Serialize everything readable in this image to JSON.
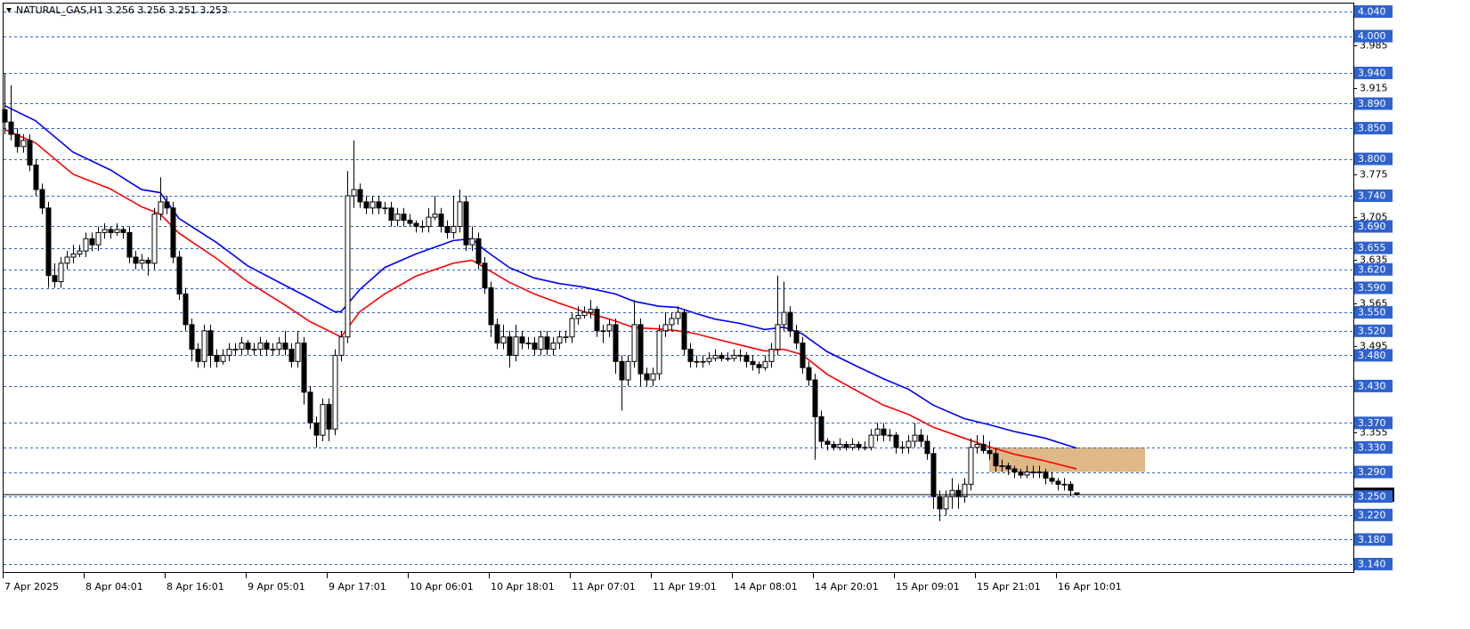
{
  "chart_data": {
    "type": "candlestick",
    "title": "NATURAL_GAS,H1",
    "ylim": [
      3.127,
      4.053
    ],
    "yticks": [
      3.985,
      3.915,
      3.775,
      3.705,
      3.635,
      3.565,
      3.495,
      3.355
    ],
    "levels": {
      "color": "#2f62d0",
      "values": [
        {
          "value": 4.04,
          "label": "4.040"
        },
        {
          "value": 4,
          "label": "4.000"
        },
        {
          "value": 3.94,
          "label": "3.940"
        },
        {
          "value": 3.89,
          "label": "3.890"
        },
        {
          "value": 3.85,
          "label": "3.850"
        },
        {
          "value": 3.8,
          "label": "3.800"
        },
        {
          "value": 3.74,
          "label": "3.740"
        },
        {
          "value": 3.69,
          "label": "3.690"
        },
        3.655,
        {
          "value": 3.62,
          "label": "3.620"
        },
        {
          "value": 3.59,
          "label": "3.590"
        },
        {
          "value": 3.55,
          "label": "3.550"
        },
        {
          "value": 3.52,
          "label": "3.520"
        },
        {
          "value": 3.48,
          "label": "3.480"
        },
        {
          "value": 3.43,
          "label": "3.430"
        },
        {
          "value": 3.37,
          "label": "3.370"
        },
        {
          "value": 3.33,
          "label": "3.330"
        },
        {
          "value": 3.29,
          "label": "3.290"
        },
        {
          "value": 3.25,
          "label": "3.250"
        },
        {
          "value": 3.22,
          "label": "3.220"
        },
        {
          "value": 3.18,
          "label": "3.180"
        },
        {
          "value": 3.14,
          "label": "3.140"
        }
      ]
    },
    "x_labels": [
      "7 Apr 2025",
      "8 Apr 04:01",
      "8 Apr 16:01",
      "9 Apr 05:01",
      "9 Apr 17:01",
      "10 Apr 06:01",
      "10 Apr 18:01",
      "11 Apr 07:01",
      "11 Apr 19:01",
      "14 Apr 08:01",
      "14 Apr 20:01",
      "15 Apr 09:01",
      "15 Apr 21:01",
      "16 Apr 10:01"
    ],
    "colors": {
      "up": "#ffffff",
      "down": "#000000",
      "outline": "#000000",
      "current": "#000000"
    },
    "zone": {
      "color": "#deb887",
      "ylim": [
        3.29,
        3.33
      ]
    },
    "series": [
      {
        "color": "#0000ff",
        "x": [
          0,
          5,
          11,
          17,
          22,
          25,
          28,
          34,
          39,
          45,
          49,
          53,
          54,
          57,
          61,
          66,
          72,
          75,
          77,
          81,
          85,
          89,
          93,
          98,
          101,
          105,
          108,
          111,
          114,
          118,
          122,
          125,
          128,
          132,
          137,
          141,
          145,
          149,
          154,
          158,
          162,
          167,
          172
        ],
        "values": [
          3.887,
          3.862,
          3.811,
          3.782,
          3.75,
          3.745,
          3.703,
          3.664,
          3.626,
          3.594,
          3.573,
          3.551,
          3.551,
          3.587,
          3.623,
          3.645,
          3.667,
          3.67,
          3.652,
          3.623,
          3.606,
          3.597,
          3.591,
          3.58,
          3.568,
          3.56,
          3.558,
          3.548,
          3.539,
          3.532,
          3.522,
          3.526,
          3.515,
          3.486,
          3.461,
          3.442,
          3.425,
          3.399,
          3.377,
          3.367,
          3.356,
          3.345,
          3.329
        ]
      },
      {
        "color": "#ff0000",
        "x": [
          0,
          5,
          11,
          17,
          22,
          25,
          28,
          34,
          39,
          45,
          49,
          53,
          54,
          57,
          61,
          66,
          72,
          75,
          77,
          81,
          85,
          89,
          93,
          98,
          101,
          105,
          108,
          111,
          114,
          118,
          122,
          125,
          128,
          132,
          137,
          141,
          145,
          149,
          154,
          158,
          162,
          167,
          172
        ],
        "values": [
          3.848,
          3.826,
          3.775,
          3.751,
          3.722,
          3.71,
          3.679,
          3.638,
          3.6,
          3.562,
          3.535,
          3.515,
          3.51,
          3.551,
          3.58,
          3.609,
          3.63,
          3.635,
          3.623,
          3.599,
          3.58,
          3.565,
          3.551,
          3.536,
          3.525,
          3.523,
          3.52,
          3.515,
          3.507,
          3.497,
          3.487,
          3.49,
          3.481,
          3.449,
          3.421,
          3.399,
          3.384,
          3.363,
          3.345,
          3.331,
          3.319,
          3.308,
          3.295
        ]
      }
    ],
    "candles": [
      [
        3.88,
        3.94,
        3.84,
        3.86
      ],
      [
        3.86,
        3.92,
        3.83,
        3.84
      ],
      [
        3.84,
        3.85,
        3.81,
        3.82
      ],
      [
        3.82,
        3.84,
        3.81,
        3.83
      ],
      [
        3.83,
        3.84,
        3.78,
        3.79
      ],
      [
        3.79,
        3.8,
        3.74,
        3.75
      ],
      [
        3.75,
        3.76,
        3.71,
        3.72
      ],
      [
        3.72,
        3.73,
        3.59,
        3.61
      ],
      [
        3.61,
        3.63,
        3.59,
        3.6
      ],
      [
        3.6,
        3.64,
        3.59,
        3.63
      ],
      [
        3.63,
        3.65,
        3.62,
        3.64
      ],
      [
        3.64,
        3.66,
        3.63,
        3.645
      ],
      [
        3.645,
        3.66,
        3.64,
        3.65
      ],
      [
        3.65,
        3.68,
        3.64,
        3.67
      ],
      [
        3.67,
        3.68,
        3.65,
        3.66
      ],
      [
        3.66,
        3.69,
        3.65,
        3.68
      ],
      [
        3.68,
        3.695,
        3.67,
        3.685
      ],
      [
        3.685,
        3.69,
        3.67,
        3.68
      ],
      [
        3.68,
        3.695,
        3.675,
        3.685
      ],
      [
        3.685,
        3.69,
        3.67,
        3.68
      ],
      [
        3.68,
        3.69,
        3.63,
        3.64
      ],
      [
        3.64,
        3.65,
        3.62,
        3.63
      ],
      [
        3.63,
        3.645,
        3.62,
        3.635
      ],
      [
        3.635,
        3.64,
        3.61,
        3.63
      ],
      [
        3.63,
        3.72,
        3.62,
        3.71
      ],
      [
        3.71,
        3.77,
        3.7,
        3.73
      ],
      [
        3.73,
        3.74,
        3.71,
        3.72
      ],
      [
        3.72,
        3.73,
        3.63,
        3.64
      ],
      [
        3.64,
        3.65,
        3.57,
        3.58
      ],
      [
        3.58,
        3.59,
        3.52,
        3.53
      ],
      [
        3.53,
        3.54,
        3.47,
        3.49
      ],
      [
        3.49,
        3.5,
        3.46,
        3.47
      ],
      [
        3.47,
        3.53,
        3.46,
        3.52
      ],
      [
        3.52,
        3.53,
        3.46,
        3.48
      ],
      [
        3.48,
        3.49,
        3.46,
        3.47
      ],
      [
        3.47,
        3.49,
        3.465,
        3.48
      ],
      [
        3.48,
        3.5,
        3.47,
        3.49
      ],
      [
        3.49,
        3.5,
        3.48,
        3.49
      ],
      [
        3.49,
        3.51,
        3.48,
        3.5
      ],
      [
        3.5,
        3.505,
        3.48,
        3.49
      ],
      [
        3.49,
        3.5,
        3.48,
        3.49
      ],
      [
        3.49,
        3.51,
        3.48,
        3.5
      ],
      [
        3.5,
        3.505,
        3.48,
        3.49
      ],
      [
        3.49,
        3.5,
        3.48,
        3.49
      ],
      [
        3.49,
        3.51,
        3.48,
        3.5
      ],
      [
        3.5,
        3.52,
        3.48,
        3.49
      ],
      [
        3.49,
        3.5,
        3.46,
        3.47
      ],
      [
        3.47,
        3.52,
        3.46,
        3.5
      ],
      [
        3.5,
        3.51,
        3.4,
        3.42
      ],
      [
        3.42,
        3.43,
        3.36,
        3.37
      ],
      [
        3.37,
        3.38,
        3.33,
        3.35
      ],
      [
        3.35,
        3.41,
        3.34,
        3.4
      ],
      [
        3.4,
        3.41,
        3.34,
        3.36
      ],
      [
        3.36,
        3.49,
        3.35,
        3.48
      ],
      [
        3.48,
        3.52,
        3.47,
        3.51
      ],
      [
        3.51,
        3.78,
        3.5,
        3.74
      ],
      [
        3.74,
        3.83,
        3.72,
        3.75
      ],
      [
        3.75,
        3.76,
        3.72,
        3.73
      ],
      [
        3.73,
        3.74,
        3.71,
        3.72
      ],
      [
        3.72,
        3.74,
        3.71,
        3.73
      ],
      [
        3.73,
        3.74,
        3.71,
        3.72
      ],
      [
        3.72,
        3.73,
        3.71,
        3.72
      ],
      [
        3.72,
        3.73,
        3.69,
        3.7
      ],
      [
        3.7,
        3.72,
        3.69,
        3.71
      ],
      [
        3.71,
        3.72,
        3.69,
        3.7
      ],
      [
        3.7,
        3.71,
        3.69,
        3.695
      ],
      [
        3.695,
        3.7,
        3.68,
        3.69
      ],
      [
        3.69,
        3.7,
        3.68,
        3.69
      ],
      [
        3.69,
        3.72,
        3.68,
        3.705
      ],
      [
        3.705,
        3.74,
        3.7,
        3.71
      ],
      [
        3.71,
        3.72,
        3.68,
        3.69
      ],
      [
        3.69,
        3.7,
        3.67,
        3.68
      ],
      [
        3.68,
        3.74,
        3.67,
        3.69
      ],
      [
        3.69,
        3.75,
        3.68,
        3.73
      ],
      [
        3.73,
        3.74,
        3.65,
        3.66
      ],
      [
        3.66,
        3.69,
        3.65,
        3.67
      ],
      [
        3.67,
        3.68,
        3.62,
        3.63
      ],
      [
        3.63,
        3.64,
        3.58,
        3.59
      ],
      [
        3.59,
        3.6,
        3.51,
        3.53
      ],
      [
        3.53,
        3.54,
        3.49,
        3.5
      ],
      [
        3.5,
        3.53,
        3.49,
        3.51
      ],
      [
        3.51,
        3.52,
        3.46,
        3.48
      ],
      [
        3.48,
        3.53,
        3.47,
        3.51
      ],
      [
        3.51,
        3.52,
        3.49,
        3.5
      ],
      [
        3.5,
        3.51,
        3.49,
        3.5
      ],
      [
        3.5,
        3.51,
        3.48,
        3.49
      ],
      [
        3.49,
        3.52,
        3.48,
        3.51
      ],
      [
        3.51,
        3.52,
        3.48,
        3.49
      ],
      [
        3.49,
        3.51,
        3.48,
        3.5
      ],
      [
        3.5,
        3.52,
        3.49,
        3.51
      ],
      [
        3.51,
        3.52,
        3.5,
        3.51
      ],
      [
        3.51,
        3.55,
        3.5,
        3.54
      ],
      [
        3.54,
        3.56,
        3.53,
        3.545
      ],
      [
        3.545,
        3.56,
        3.54,
        3.55
      ],
      [
        3.55,
        3.57,
        3.54,
        3.555
      ],
      [
        3.555,
        3.56,
        3.51,
        3.52
      ],
      [
        3.52,
        3.53,
        3.5,
        3.52
      ],
      [
        3.52,
        3.54,
        3.51,
        3.53
      ],
      [
        3.53,
        3.54,
        3.45,
        3.47
      ],
      [
        3.47,
        3.48,
        3.39,
        3.44
      ],
      [
        3.44,
        3.48,
        3.43,
        3.47
      ],
      [
        3.47,
        3.57,
        3.46,
        3.53
      ],
      [
        3.53,
        3.54,
        3.43,
        3.45
      ],
      [
        3.45,
        3.46,
        3.43,
        3.44
      ],
      [
        3.44,
        3.46,
        3.43,
        3.45
      ],
      [
        3.45,
        3.53,
        3.44,
        3.52
      ],
      [
        3.52,
        3.55,
        3.51,
        3.53
      ],
      [
        3.53,
        3.55,
        3.52,
        3.54
      ],
      [
        3.54,
        3.56,
        3.53,
        3.55
      ],
      [
        3.55,
        3.555,
        3.48,
        3.49
      ],
      [
        3.49,
        3.5,
        3.46,
        3.47
      ],
      [
        3.47,
        3.48,
        3.46,
        3.47
      ],
      [
        3.47,
        3.48,
        3.46,
        3.47
      ],
      [
        3.47,
        3.485,
        3.465,
        3.475
      ],
      [
        3.475,
        3.49,
        3.47,
        3.48
      ],
      [
        3.48,
        3.485,
        3.47,
        3.475
      ],
      [
        3.475,
        3.485,
        3.47,
        3.475
      ],
      [
        3.475,
        3.49,
        3.47,
        3.48
      ],
      [
        3.48,
        3.49,
        3.47,
        3.48
      ],
      [
        3.48,
        3.485,
        3.46,
        3.47
      ],
      [
        3.47,
        3.48,
        3.455,
        3.465
      ],
      [
        3.465,
        3.47,
        3.45,
        3.46
      ],
      [
        3.46,
        3.48,
        3.455,
        3.47
      ],
      [
        3.47,
        3.5,
        3.46,
        3.49
      ],
      [
        3.49,
        3.61,
        3.48,
        3.53
      ],
      [
        3.53,
        3.6,
        3.52,
        3.55
      ],
      [
        3.55,
        3.56,
        3.51,
        3.52
      ],
      [
        3.52,
        3.53,
        3.49,
        3.5
      ],
      [
        3.5,
        3.51,
        3.45,
        3.46
      ],
      [
        3.46,
        3.47,
        3.43,
        3.44
      ],
      [
        3.44,
        3.45,
        3.31,
        3.38
      ],
      [
        3.38,
        3.39,
        3.33,
        3.34
      ],
      [
        3.34,
        3.345,
        3.325,
        3.335
      ],
      [
        3.335,
        3.34,
        3.325,
        3.33
      ],
      [
        3.33,
        3.345,
        3.325,
        3.335
      ],
      [
        3.335,
        3.34,
        3.325,
        3.33
      ],
      [
        3.33,
        3.345,
        3.325,
        3.335
      ],
      [
        3.335,
        3.34,
        3.325,
        3.33
      ],
      [
        3.33,
        3.34,
        3.325,
        3.33
      ],
      [
        3.33,
        3.36,
        3.325,
        3.35
      ],
      [
        3.35,
        3.37,
        3.34,
        3.36
      ],
      [
        3.36,
        3.37,
        3.34,
        3.35
      ],
      [
        3.35,
        3.36,
        3.34,
        3.35
      ],
      [
        3.35,
        3.355,
        3.32,
        3.33
      ],
      [
        3.33,
        3.34,
        3.32,
        3.33
      ],
      [
        3.33,
        3.35,
        3.32,
        3.34
      ],
      [
        3.34,
        3.37,
        3.33,
        3.35
      ],
      [
        3.35,
        3.36,
        3.33,
        3.34
      ],
      [
        3.34,
        3.35,
        3.31,
        3.32
      ],
      [
        3.32,
        3.33,
        3.23,
        3.25
      ],
      [
        3.25,
        3.26,
        3.21,
        3.23
      ],
      [
        3.23,
        3.26,
        3.22,
        3.25
      ],
      [
        3.25,
        3.28,
        3.23,
        3.26
      ],
      [
        3.26,
        3.27,
        3.23,
        3.25
      ],
      [
        3.25,
        3.28,
        3.24,
        3.27
      ],
      [
        3.27,
        3.345,
        3.26,
        3.33
      ],
      [
        3.33,
        3.35,
        3.32,
        3.335
      ],
      [
        3.335,
        3.35,
        3.32,
        3.325
      ],
      [
        3.325,
        3.34,
        3.31,
        3.32
      ],
      [
        3.32,
        3.33,
        3.29,
        3.3
      ],
      [
        3.3,
        3.31,
        3.29,
        3.3
      ],
      [
        3.3,
        3.305,
        3.285,
        3.295
      ],
      [
        3.295,
        3.3,
        3.28,
        3.29
      ],
      [
        3.29,
        3.295,
        3.28,
        3.285
      ],
      [
        3.285,
        3.3,
        3.28,
        3.29
      ],
      [
        3.29,
        3.3,
        3.28,
        3.29
      ],
      [
        3.29,
        3.3,
        3.28,
        3.29
      ],
      [
        3.29,
        3.295,
        3.27,
        3.28
      ],
      [
        3.28,
        3.29,
        3.27,
        3.275
      ],
      [
        3.275,
        3.28,
        3.26,
        3.27
      ],
      [
        3.27,
        3.28,
        3.26,
        3.27
      ],
      [
        3.27,
        3.275,
        3.25,
        3.26
      ],
      [
        3.256,
        3.256,
        3.251,
        3.253
      ]
    ]
  }
}
